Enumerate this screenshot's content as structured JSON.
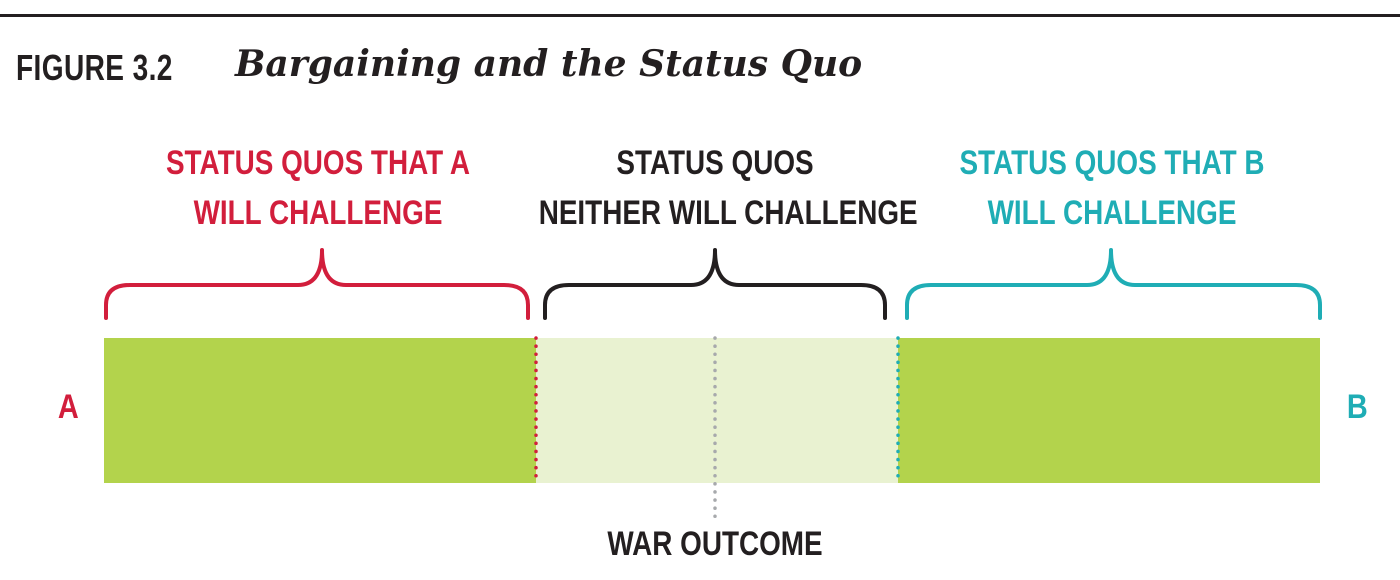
{
  "figure": {
    "number": "FIGURE 3.2",
    "title": "Bargaining and the Status Quo"
  },
  "groups": [
    {
      "id": "a",
      "lines": [
        "STATUS QUOS THAT A",
        "WILL CHALLENGE"
      ],
      "color": "#d21e3c"
    },
    {
      "id": "neither",
      "lines": [
        "STATUS QUOS",
        "NEITHER WILL CHALLENGE"
      ],
      "color": "#231f20"
    },
    {
      "id": "b",
      "lines": [
        "STATUS QUOS THAT B",
        "WILL CHALLENGE"
      ],
      "color": "#1fadb5"
    }
  ],
  "endpoints": {
    "left": "A",
    "right": "B",
    "color": "#d21e3c",
    "right_color": "#1fadb5"
  },
  "war_outcome": {
    "label": "WAR OUTCOME",
    "line_color": "#a7a9ac"
  },
  "colors": {
    "challenge_region": "#b3d34c",
    "neutral_region": "#e9f2d1",
    "rule": "#231f20"
  }
}
